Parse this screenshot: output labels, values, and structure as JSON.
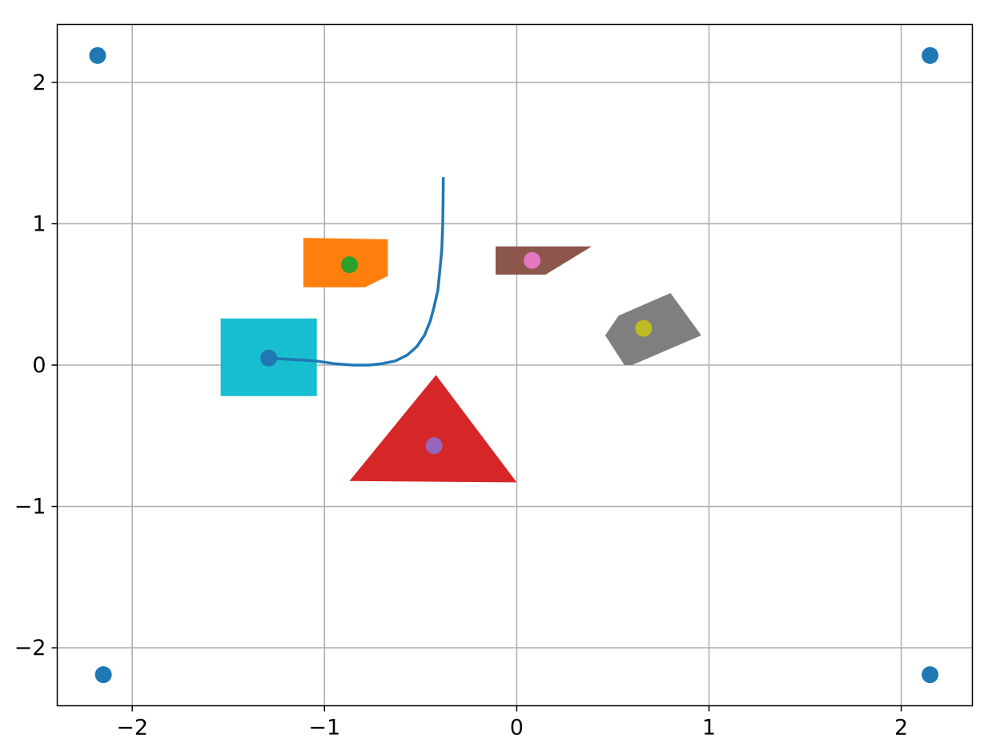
{
  "chart_data": {
    "type": "scatter",
    "title": "",
    "xlabel": "",
    "ylabel": "",
    "xlim": [
      -2.39,
      2.37
    ],
    "ylim": [
      -2.41,
      2.41
    ],
    "grid": true,
    "xticks": [
      -2,
      -1,
      0,
      1,
      2
    ],
    "yticks": [
      -2,
      -1,
      0,
      1,
      2
    ],
    "xtick_labels": [
      "−2",
      "−1",
      "0",
      "1",
      "2"
    ],
    "ytick_labels": [
      "−2",
      "−1",
      "0",
      "1",
      "2"
    ],
    "corner_points": {
      "color": "#1f77b4",
      "points": [
        [
          -2.18,
          2.19
        ],
        [
          2.15,
          2.19
        ],
        [
          -2.15,
          -2.19
        ],
        [
          2.15,
          -2.19
        ]
      ]
    },
    "polygons": [
      {
        "name": "orange-polygon",
        "color": "#ff7f0e",
        "vertices": [
          [
            -1.11,
            0.9
          ],
          [
            -0.67,
            0.89
          ],
          [
            -0.67,
            0.63
          ],
          [
            -0.79,
            0.55
          ],
          [
            -1.11,
            0.55
          ]
        ],
        "center": [
          -0.87,
          0.71
        ],
        "center_color": "#2ca02c"
      },
      {
        "name": "brown-polygon",
        "color": "#8c564b",
        "vertices": [
          [
            -0.11,
            0.84
          ],
          [
            0.39,
            0.84
          ],
          [
            0.15,
            0.64
          ],
          [
            -0.11,
            0.64
          ]
        ],
        "center": [
          0.08,
          0.74
        ],
        "center_color": "#e377c2"
      },
      {
        "name": "gray-polygon",
        "color": "#7f7f7f",
        "vertices": [
          [
            0.53,
            0.35
          ],
          [
            0.8,
            0.51
          ],
          [
            0.96,
            0.21
          ],
          [
            0.6,
            0.0
          ],
          [
            0.56,
            0.0
          ],
          [
            0.46,
            0.21
          ]
        ],
        "center": [
          0.66,
          0.26
        ],
        "center_color": "#bcbd22"
      },
      {
        "name": "cyan-square",
        "color": "#17becf",
        "vertices": [
          [
            -1.54,
            0.33
          ],
          [
            -1.04,
            0.33
          ],
          [
            -1.04,
            -0.22
          ],
          [
            -1.54,
            -0.22
          ]
        ],
        "center": [
          -1.29,
          0.05
        ],
        "center_color": "#1f77b4"
      },
      {
        "name": "red-triangle",
        "color": "#d62728",
        "vertices": [
          [
            -0.42,
            -0.07
          ],
          [
            0.0,
            -0.83
          ],
          [
            -0.87,
            -0.82
          ]
        ],
        "center": [
          -0.43,
          -0.57
        ],
        "center_color": "#9467bd"
      }
    ],
    "curve": {
      "color": "#1f77b4",
      "points": [
        [
          -1.29,
          0.05
        ],
        [
          -1.18,
          0.04
        ],
        [
          -1.05,
          0.03
        ],
        [
          -0.95,
          0.01
        ],
        [
          -0.85,
          0.0
        ],
        [
          -0.77,
          0.0
        ],
        [
          -0.7,
          0.01
        ],
        [
          -0.63,
          0.03
        ],
        [
          -0.57,
          0.07
        ],
        [
          -0.52,
          0.13
        ],
        [
          -0.48,
          0.21
        ],
        [
          -0.45,
          0.31
        ],
        [
          -0.43,
          0.41
        ],
        [
          -0.41,
          0.53
        ],
        [
          -0.4,
          0.67
        ],
        [
          -0.39,
          0.82
        ],
        [
          -0.385,
          1.0
        ],
        [
          -0.383,
          1.16
        ],
        [
          -0.382,
          1.33
        ]
      ]
    }
  }
}
